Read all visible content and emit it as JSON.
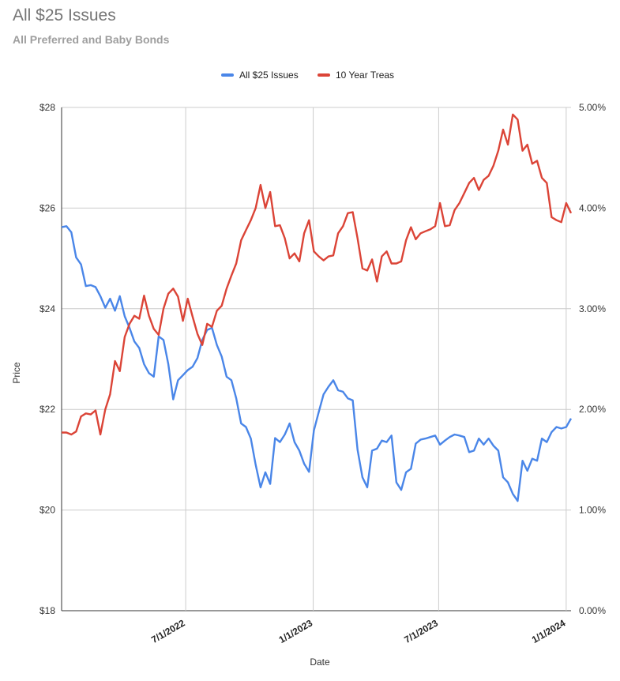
{
  "chart_data": {
    "type": "line",
    "title": "All $25 Issues",
    "subtitle": "All Preferred and Baby Bonds",
    "xlabel": "Date",
    "ylabel": "Price",
    "x_ticks": [
      "7/1/2022",
      "1/1/2023",
      "7/1/2023",
      "1/1/2024"
    ],
    "y_left_ticks": [
      "$28",
      "$26",
      "$24",
      "$22",
      "$20",
      "$18"
    ],
    "y_right_ticks": [
      "5.00%",
      "4.00%",
      "3.00%",
      "2.00%",
      "1.00%",
      "0.00%"
    ],
    "ylim_left": [
      18,
      28
    ],
    "ylim_right": [
      0,
      5
    ],
    "xlim": [
      "2022-01-03",
      "2024-01-08"
    ],
    "grid": true,
    "legend_position": "top",
    "series": [
      {
        "name": "All $25 Issues",
        "axis": "left",
        "color": "#4a86e8",
        "x": [
          "2022-01-03",
          "2022-01-10",
          "2022-01-17",
          "2022-01-24",
          "2022-01-31",
          "2022-02-07",
          "2022-02-14",
          "2022-02-21",
          "2022-02-28",
          "2022-03-07",
          "2022-03-14",
          "2022-03-21",
          "2022-03-28",
          "2022-04-04",
          "2022-04-11",
          "2022-04-18",
          "2022-04-25",
          "2022-05-02",
          "2022-05-09",
          "2022-05-16",
          "2022-05-23",
          "2022-05-30",
          "2022-06-06",
          "2022-06-13",
          "2022-06-20",
          "2022-06-27",
          "2022-07-04",
          "2022-07-11",
          "2022-07-18",
          "2022-07-25",
          "2022-08-01",
          "2022-08-08",
          "2022-08-15",
          "2022-08-22",
          "2022-08-29",
          "2022-09-05",
          "2022-09-12",
          "2022-09-19",
          "2022-09-26",
          "2022-10-03",
          "2022-10-10",
          "2022-10-17",
          "2022-10-24",
          "2022-10-31",
          "2022-11-07",
          "2022-11-14",
          "2022-11-21",
          "2022-11-28",
          "2022-12-05",
          "2022-12-12",
          "2022-12-19",
          "2022-12-26",
          "2023-01-02",
          "2023-01-09",
          "2023-01-16",
          "2023-01-23",
          "2023-01-30",
          "2023-02-06",
          "2023-02-13",
          "2023-02-20",
          "2023-02-27",
          "2023-03-06",
          "2023-03-13",
          "2023-03-20",
          "2023-03-27",
          "2023-04-03",
          "2023-04-10",
          "2023-04-17",
          "2023-04-24",
          "2023-05-01",
          "2023-05-08",
          "2023-05-15",
          "2023-05-22",
          "2023-05-29",
          "2023-06-05",
          "2023-06-12",
          "2023-06-19",
          "2023-06-26",
          "2023-07-03",
          "2023-07-10",
          "2023-07-17",
          "2023-07-24",
          "2023-07-31",
          "2023-08-07",
          "2023-08-14",
          "2023-08-21",
          "2023-08-28",
          "2023-09-04",
          "2023-09-11",
          "2023-09-18",
          "2023-09-25",
          "2023-10-02",
          "2023-10-09",
          "2023-10-16",
          "2023-10-23",
          "2023-10-30",
          "2023-11-06",
          "2023-11-13",
          "2023-11-20",
          "2023-11-27",
          "2023-12-04",
          "2023-12-11",
          "2023-12-18",
          "2023-12-25",
          "2024-01-01",
          "2024-01-08"
        ],
        "values": [
          25.62,
          25.64,
          25.52,
          25.02,
          24.88,
          24.45,
          24.47,
          24.43,
          24.25,
          24.02,
          24.2,
          23.96,
          24.25,
          23.85,
          23.62,
          23.35,
          23.22,
          22.9,
          22.72,
          22.65,
          23.45,
          23.38,
          22.9,
          22.2,
          22.58,
          22.68,
          22.78,
          22.85,
          23.02,
          23.38,
          23.58,
          23.62,
          23.28,
          23.05,
          22.65,
          22.58,
          22.22,
          21.72,
          21.65,
          21.42,
          20.9,
          20.45,
          20.75,
          20.52,
          21.43,
          21.35,
          21.5,
          21.72,
          21.35,
          21.18,
          20.92,
          20.76,
          21.58,
          21.95,
          22.3,
          22.45,
          22.58,
          22.38,
          22.35,
          22.22,
          22.18,
          21.2,
          20.65,
          20.45,
          21.18,
          21.22,
          21.38,
          21.35,
          21.48,
          20.55,
          20.4,
          20.75,
          20.82,
          21.32,
          21.4,
          21.42,
          21.45,
          21.48,
          21.3,
          21.38,
          21.45,
          21.5,
          21.48,
          21.45,
          21.15,
          21.18,
          21.42,
          21.3,
          21.42,
          21.28,
          21.18,
          20.65,
          20.55,
          20.32,
          20.18,
          20.98,
          20.78,
          21.02,
          20.98,
          21.42,
          21.35,
          21.55,
          21.65,
          21.62,
          21.65,
          21.82
        ]
      },
      {
        "name": "10 Year Treas",
        "axis": "right",
        "color": "#db4437",
        "x": [
          "2022-01-03",
          "2022-01-10",
          "2022-01-17",
          "2022-01-24",
          "2022-01-31",
          "2022-02-07",
          "2022-02-14",
          "2022-02-21",
          "2022-02-28",
          "2022-03-07",
          "2022-03-14",
          "2022-03-21",
          "2022-03-28",
          "2022-04-04",
          "2022-04-11",
          "2022-04-18",
          "2022-04-25",
          "2022-05-02",
          "2022-05-09",
          "2022-05-16",
          "2022-05-23",
          "2022-05-30",
          "2022-06-06",
          "2022-06-13",
          "2022-06-20",
          "2022-06-27",
          "2022-07-04",
          "2022-07-11",
          "2022-07-18",
          "2022-07-25",
          "2022-08-01",
          "2022-08-08",
          "2022-08-15",
          "2022-08-22",
          "2022-08-29",
          "2022-09-05",
          "2022-09-12",
          "2022-09-19",
          "2022-09-26",
          "2022-10-03",
          "2022-10-10",
          "2022-10-17",
          "2022-10-24",
          "2022-10-31",
          "2022-11-07",
          "2022-11-14",
          "2022-11-21",
          "2022-11-28",
          "2022-12-05",
          "2022-12-12",
          "2022-12-19",
          "2022-12-26",
          "2023-01-02",
          "2023-01-09",
          "2023-01-16",
          "2023-01-23",
          "2023-01-30",
          "2023-02-06",
          "2023-02-13",
          "2023-02-20",
          "2023-02-27",
          "2023-03-06",
          "2023-03-13",
          "2023-03-20",
          "2023-03-27",
          "2023-04-03",
          "2023-04-10",
          "2023-04-17",
          "2023-04-24",
          "2023-05-01",
          "2023-05-08",
          "2023-05-15",
          "2023-05-22",
          "2023-05-29",
          "2023-06-05",
          "2023-06-12",
          "2023-06-19",
          "2023-06-26",
          "2023-07-03",
          "2023-07-10",
          "2023-07-17",
          "2023-07-24",
          "2023-07-31",
          "2023-08-07",
          "2023-08-14",
          "2023-08-21",
          "2023-08-28",
          "2023-09-04",
          "2023-09-11",
          "2023-09-18",
          "2023-09-25",
          "2023-10-02",
          "2023-10-09",
          "2023-10-16",
          "2023-10-23",
          "2023-10-30",
          "2023-11-06",
          "2023-11-13",
          "2023-11-20",
          "2023-11-27",
          "2023-12-04",
          "2023-12-11",
          "2023-12-18",
          "2023-12-25",
          "2024-01-01",
          "2024-01-08"
        ],
        "values": [
          1.77,
          1.77,
          1.75,
          1.78,
          1.93,
          1.96,
          1.95,
          1.99,
          1.75,
          2.0,
          2.15,
          2.48,
          2.38,
          2.72,
          2.85,
          2.93,
          2.9,
          3.13,
          2.93,
          2.8,
          2.74,
          3.0,
          3.15,
          3.2,
          3.12,
          2.88,
          3.1,
          2.92,
          2.75,
          2.64,
          2.85,
          2.82,
          2.98,
          3.03,
          3.2,
          3.33,
          3.45,
          3.68,
          3.78,
          3.88,
          4.0,
          4.23,
          4.0,
          4.16,
          3.82,
          3.83,
          3.7,
          3.5,
          3.55,
          3.47,
          3.75,
          3.88,
          3.57,
          3.52,
          3.48,
          3.52,
          3.53,
          3.75,
          3.82,
          3.95,
          3.96,
          3.7,
          3.4,
          3.38,
          3.49,
          3.27,
          3.52,
          3.57,
          3.45,
          3.45,
          3.47,
          3.68,
          3.81,
          3.69,
          3.75,
          3.77,
          3.79,
          3.82,
          4.05,
          3.82,
          3.83,
          3.98,
          4.05,
          4.15,
          4.25,
          4.3,
          4.18,
          4.28,
          4.32,
          4.42,
          4.57,
          4.78,
          4.63,
          4.93,
          4.88,
          4.57,
          4.63,
          4.44,
          4.47,
          4.3,
          4.25,
          3.91,
          3.88,
          3.86,
          4.05,
          3.95
        ]
      }
    ]
  }
}
